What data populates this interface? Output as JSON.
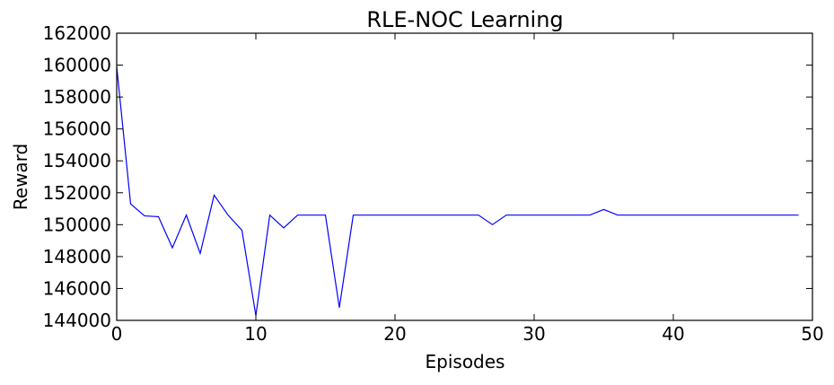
{
  "chart_data": {
    "type": "line",
    "title": "RLE-NOC Learning",
    "xlabel": "Episodes",
    "ylabel": "Reward",
    "xlim": [
      0,
      50
    ],
    "ylim": [
      144000,
      162000
    ],
    "x_ticks": [
      0,
      10,
      20,
      30,
      40,
      50
    ],
    "y_ticks": [
      144000,
      146000,
      148000,
      150000,
      152000,
      154000,
      156000,
      158000,
      160000,
      162000
    ],
    "grid": false,
    "legend": "none",
    "series": [
      {
        "color": "#0000ff",
        "x": [
          0,
          1,
          2,
          3,
          4,
          5,
          6,
          7,
          8,
          9,
          10,
          11,
          12,
          13,
          14,
          15,
          16,
          17,
          18,
          19,
          20,
          21,
          22,
          23,
          24,
          25,
          26,
          27,
          28,
          29,
          30,
          31,
          32,
          33,
          34,
          35,
          36,
          37,
          38,
          39,
          40,
          41,
          42,
          43,
          44,
          45,
          46,
          47,
          48,
          49
        ],
        "values": [
          159900,
          151300,
          150550,
          150500,
          148550,
          150600,
          148200,
          151850,
          150600,
          149650,
          144300,
          150600,
          149800,
          150600,
          150600,
          150600,
          144800,
          150600,
          150600,
          150600,
          150600,
          150600,
          150600,
          150600,
          150600,
          150600,
          150600,
          150000,
          150600,
          150600,
          150600,
          150600,
          150600,
          150600,
          150600,
          150950,
          150600,
          150600,
          150600,
          150600,
          150600,
          150600,
          150600,
          150600,
          150600,
          150600,
          150600,
          150600,
          150600,
          150600
        ]
      }
    ]
  }
}
